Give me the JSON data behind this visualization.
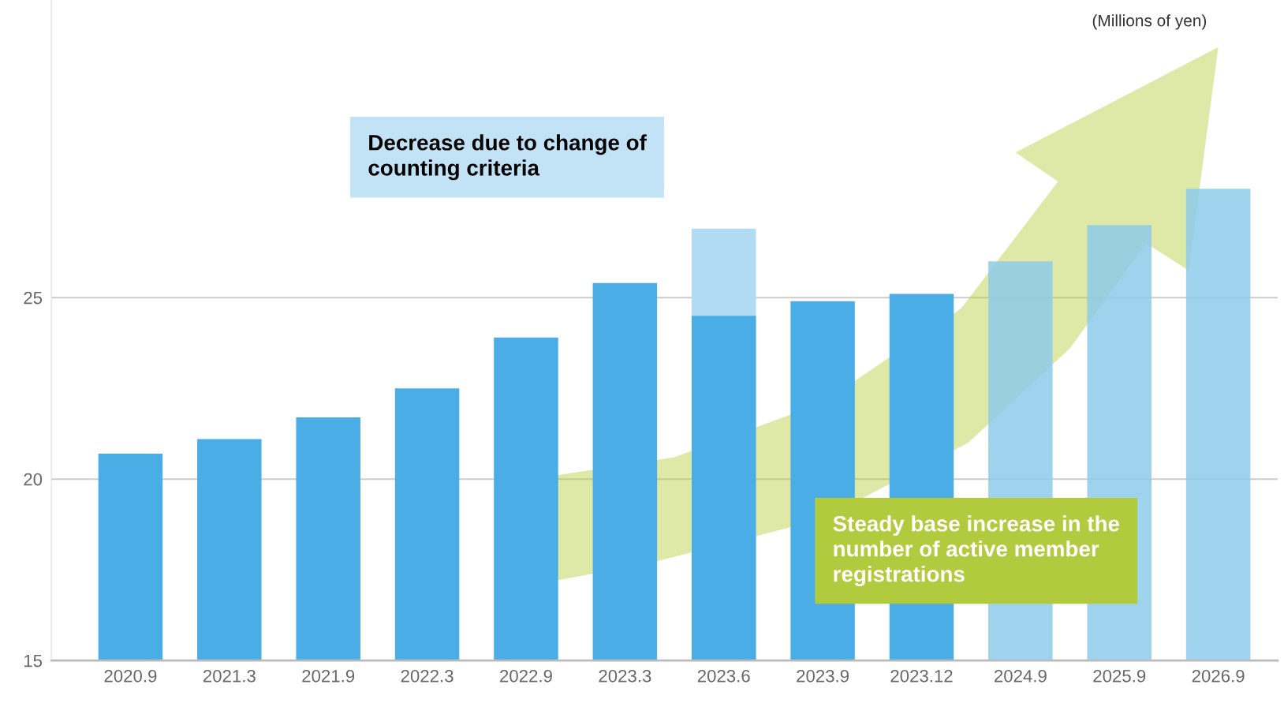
{
  "chart_data": {
    "type": "bar",
    "ylabel": "(Millions of yen)",
    "categories": [
      "2020.9",
      "2021.3",
      "2021.9",
      "2022.3",
      "2022.9",
      "2023.3",
      "2023.6",
      "2023.9",
      "2023.12",
      "2024.9",
      "2025.9",
      "2026.9"
    ],
    "series": [
      {
        "color": "#b0dbf2",
        "values": [
          null,
          null,
          null,
          null,
          null,
          null,
          26.9,
          null,
          null,
          null,
          null,
          null
        ]
      },
      {
        "colors": [
          "#4aade5",
          "#4aade5",
          "#4aade5",
          "#4aade5",
          "#4aade5",
          "#4aade5",
          "#4aade5",
          "#4aade5",
          "#4aade5",
          "#8ecaea",
          "#8ecaea",
          "#8ecaea"
        ],
        "values": [
          20.7,
          21.1,
          21.7,
          22.5,
          23.9,
          25.4,
          24.5,
          24.9,
          25.1,
          26.0,
          27.0,
          28.0
        ]
      }
    ],
    "ylim": [
      15,
      33.2
    ],
    "yticks": [
      15,
      20,
      25
    ],
    "grid": "y",
    "annotations": [
      "Decrease due to change of\ncounting criteria",
      "Steady base increase in the\nnumber of active member\nregistrations"
    ]
  }
}
